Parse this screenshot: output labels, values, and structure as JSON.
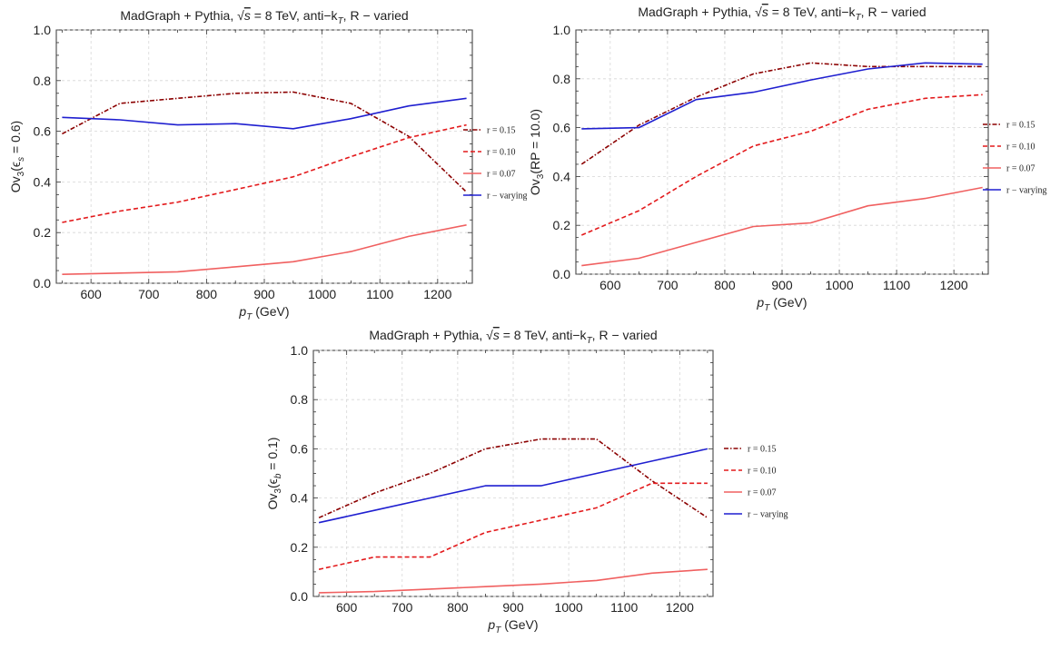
{
  "chart_data": [
    {
      "type": "line",
      "title": {
        "main": "MadGraph + Pythia, ",
        "sqrt": "s",
        "mid": " = 8 TeV, anti−k",
        "sub": "T",
        "end": ", R − varied"
      },
      "xlabel": {
        "main": "p",
        "sub": "T",
        "rest": " (GeV)"
      },
      "ylabel": {
        "main": "Ov",
        "sub1": "3",
        "mid": "(ϵ",
        "sub2": "s",
        "rest": " = 0.6)"
      },
      "xlim": [
        540,
        1260
      ],
      "ylim": [
        0,
        1.0
      ],
      "xticks": [
        "600",
        "700",
        "800",
        "900",
        "1000",
        "1100",
        "1200"
      ],
      "yticks": [
        "0.0",
        "0.2",
        "0.4",
        "0.6",
        "0.8",
        "1.0"
      ],
      "grid": true,
      "legend_position": "right",
      "x": [
        550,
        650,
        750,
        850,
        950,
        1050,
        1150,
        1250
      ],
      "series": [
        {
          "name": "r = 0.15",
          "color": "#8b0000",
          "style": "dotdash",
          "values": [
            0.59,
            0.71,
            0.73,
            0.75,
            0.755,
            0.71,
            0.58,
            0.36
          ]
        },
        {
          "name": "r = 0.10",
          "color": "#e31a1c",
          "style": "dashed",
          "values": [
            0.24,
            0.285,
            0.32,
            0.37,
            0.42,
            0.5,
            0.575,
            0.625
          ]
        },
        {
          "name": "r = 0.07",
          "color": "#f06060",
          "style": "solid",
          "values": [
            0.035,
            0.04,
            0.045,
            0.065,
            0.085,
            0.125,
            0.185,
            0.23
          ]
        },
        {
          "name": "r − varying",
          "color": "#1f1fd0",
          "style": "solid",
          "values": [
            0.655,
            0.645,
            0.625,
            0.63,
            0.61,
            0.65,
            0.7,
            0.73
          ]
        }
      ]
    },
    {
      "type": "line",
      "title": {
        "main": "MadGraph + Pythia, ",
        "sqrt": "s",
        "mid": " = 8 TeV, anti−k",
        "sub": "T",
        "end": ", R − varied"
      },
      "xlabel": {
        "main": "p",
        "sub": "T",
        "rest": " (GeV)"
      },
      "ylabel": {
        "main": "Ov",
        "sub1": "3",
        "mid": "(RP",
        "sub2": "",
        "rest": " = 10.0)"
      },
      "xlim": [
        540,
        1260
      ],
      "ylim": [
        0,
        1.0
      ],
      "xticks": [
        "600",
        "700",
        "800",
        "900",
        "1000",
        "1100",
        "1200"
      ],
      "yticks": [
        "0.0",
        "0.2",
        "0.4",
        "0.6",
        "0.8",
        "1.0"
      ],
      "grid": true,
      "legend_position": "right",
      "x": [
        550,
        650,
        750,
        850,
        950,
        1050,
        1150,
        1250
      ],
      "series": [
        {
          "name": "r = 0.15",
          "color": "#8b0000",
          "style": "dotdash",
          "values": [
            0.45,
            0.61,
            0.725,
            0.82,
            0.865,
            0.85,
            0.85,
            0.85
          ]
        },
        {
          "name": "r = 0.10",
          "color": "#e31a1c",
          "style": "dashed",
          "values": [
            0.16,
            0.26,
            0.4,
            0.525,
            0.585,
            0.675,
            0.72,
            0.735
          ]
        },
        {
          "name": "r = 0.07",
          "color": "#f06060",
          "style": "solid",
          "values": [
            0.035,
            0.065,
            0.13,
            0.195,
            0.21,
            0.28,
            0.31,
            0.355
          ]
        },
        {
          "name": "r − varying",
          "color": "#1f1fd0",
          "style": "solid",
          "values": [
            0.595,
            0.6,
            0.715,
            0.745,
            0.795,
            0.84,
            0.865,
            0.86
          ]
        }
      ]
    },
    {
      "type": "line",
      "title": {
        "main": "MadGraph + Pythia, ",
        "sqrt": "s",
        "mid": " = 8 TeV, anti−k",
        "sub": "T",
        "end": ", R − varied"
      },
      "xlabel": {
        "main": "p",
        "sub": "T",
        "rest": " (GeV)"
      },
      "ylabel": {
        "main": "Ov",
        "sub1": "3",
        "mid": "(ϵ",
        "sub2": "b",
        "rest": " = 0.1)"
      },
      "xlim": [
        540,
        1260
      ],
      "ylim": [
        0,
        1.0
      ],
      "xticks": [
        "600",
        "700",
        "800",
        "900",
        "1000",
        "1100",
        "1200"
      ],
      "yticks": [
        "0.0",
        "0.2",
        "0.4",
        "0.6",
        "0.8",
        "1.0"
      ],
      "grid": true,
      "legend_position": "right",
      "x": [
        550,
        650,
        750,
        850,
        950,
        1050,
        1150,
        1250
      ],
      "series": [
        {
          "name": "r = 0.15",
          "color": "#8b0000",
          "style": "dotdash",
          "values": [
            0.32,
            0.42,
            0.5,
            0.6,
            0.64,
            0.64,
            0.47,
            0.32
          ]
        },
        {
          "name": "r = 0.10",
          "color": "#e31a1c",
          "style": "dashed",
          "values": [
            0.11,
            0.16,
            0.16,
            0.26,
            0.31,
            0.36,
            0.46,
            0.46
          ]
        },
        {
          "name": "r = 0.07",
          "color": "#f06060",
          "style": "solid",
          "values": [
            0.015,
            0.02,
            0.03,
            0.04,
            0.05,
            0.065,
            0.095,
            0.11
          ]
        },
        {
          "name": "r − varying",
          "color": "#1f1fd0",
          "style": "solid",
          "values": [
            0.3,
            0.35,
            0.4,
            0.45,
            0.45,
            0.5,
            0.55,
            0.6
          ]
        }
      ]
    }
  ]
}
